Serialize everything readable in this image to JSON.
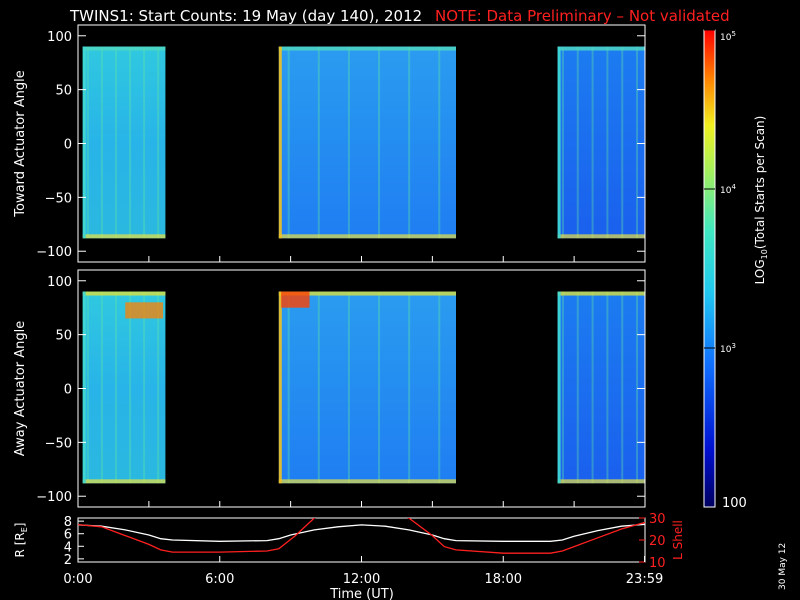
{
  "title": "TWINS1: Start Counts: 19 May (day 140), 2012",
  "note": "NOTE: Data Preliminary – Not validated",
  "footer_date": "30 May 12",
  "chart_data": [
    {
      "type": "heatmap",
      "ylabel": "Toward Actuator Angle",
      "ylim": [
        -110,
        110
      ],
      "yticks": [
        "100",
        "50",
        "0",
        "−50",
        "−100"
      ],
      "ytick_values": [
        100,
        50,
        0,
        -50,
        -100
      ],
      "xlim_hours": [
        0,
        24
      ],
      "data_segments_hours": [
        [
          0.2,
          3.7
        ],
        [
          8.5,
          16.0
        ],
        [
          20.3,
          23.99
        ]
      ],
      "angle_range": [
        -88,
        90
      ]
    },
    {
      "type": "heatmap",
      "ylabel": "Away Actuator Angle",
      "ylim": [
        -110,
        110
      ],
      "yticks": [
        "100",
        "50",
        "0",
        "−50",
        "−100"
      ],
      "ytick_values": [
        100,
        50,
        0,
        -50,
        -100
      ],
      "xlim_hours": [
        0,
        24
      ],
      "data_segments_hours": [
        [
          0.2,
          3.7
        ],
        [
          8.5,
          16.0
        ],
        [
          20.3,
          23.99
        ]
      ],
      "angle_range": [
        -88,
        90
      ]
    },
    {
      "type": "line",
      "xlabel": "Time (UT)",
      "ylabel_left": "R [R",
      "ylabel_left_sub": "E",
      "ylabel_left_end": "]",
      "ylabel_right": "L Shell",
      "ylim_left": [
        1.5,
        8.5
      ],
      "ylim_right": [
        10,
        30
      ],
      "yticks_left": [
        "8",
        "6",
        "4",
        "2"
      ],
      "ytick_values_left": [
        8,
        6,
        4,
        2
      ],
      "yticks_right": [
        "30",
        "20",
        "10"
      ],
      "ytick_values_right": [
        30,
        20,
        10
      ],
      "xticks": [
        "0:00",
        "6:00",
        "12:00",
        "18:00",
        "23:59"
      ],
      "xtick_values": [
        0,
        6,
        12,
        18,
        23.98
      ],
      "series": [
        {
          "color": "#ffffff",
          "x": [
            0,
            1,
            2,
            3,
            3.5,
            4,
            6,
            8,
            8.5,
            9,
            10,
            11,
            12,
            13,
            14,
            15,
            15.5,
            16,
            18,
            20,
            20.5,
            21,
            22,
            23,
            24
          ],
          "y": [
            7.4,
            7.2,
            6.6,
            5.8,
            5.2,
            5.0,
            4.8,
            4.9,
            5.2,
            5.8,
            6.6,
            7.1,
            7.4,
            7.2,
            6.6,
            5.8,
            5.2,
            4.9,
            4.8,
            4.8,
            5.0,
            5.6,
            6.5,
            7.2,
            7.5
          ]
        },
        {
          "color": "#ff2020",
          "axis": "right",
          "x": [
            0,
            1,
            2,
            3,
            3.5,
            4,
            6,
            8,
            8.5,
            9.2,
            10,
            10.3,
            13.7,
            14,
            15,
            15.5,
            16,
            18,
            20,
            20.5,
            21,
            22,
            23,
            24
          ],
          "y": [
            27,
            26,
            22,
            18,
            15.5,
            14.5,
            14.5,
            15,
            16,
            22,
            30,
            31.5,
            31.5,
            30,
            22,
            17,
            15.5,
            14,
            14,
            15,
            17,
            21,
            25,
            28
          ]
        }
      ]
    }
  ],
  "colorbar": {
    "label": "LOG",
    "label_sub": "10",
    "label_rest": "(Total Starts per Scan)",
    "ticks": [
      "10",
      "10",
      "10"
    ],
    "tick_exps": [
      "5",
      "4",
      "3"
    ],
    "tick_values": [
      100000,
      10000,
      1000
    ],
    "bottom_label": "100"
  }
}
